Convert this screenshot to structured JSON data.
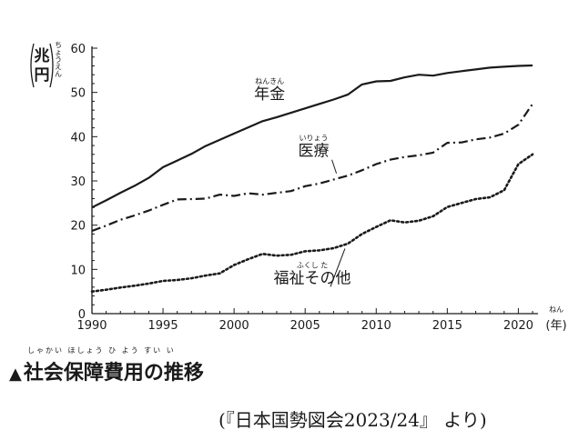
{
  "chart_data": {
    "type": "line",
    "unit_label": "兆円",
    "unit_ruby": "ちょうえん",
    "x_unit_label": "(年)",
    "x_unit_ruby": "ねん",
    "xlim": [
      1990,
      2021
    ],
    "ylim": [
      0,
      60
    ],
    "x_ticks": [
      1990,
      1995,
      2000,
      2005,
      2010,
      2015,
      2020
    ],
    "y_ticks": [
      0,
      10,
      20,
      30,
      40,
      50,
      60
    ],
    "grid": false,
    "series": [
      {
        "name": "年金",
        "ruby": "ねんきん",
        "style": "solid",
        "color": "#1a1a1a",
        "x": [
          1990,
          1991,
          1992,
          1993,
          1994,
          1995,
          1996,
          1997,
          1998,
          1999,
          2000,
          2001,
          2002,
          2003,
          2004,
          2005,
          2006,
          2007,
          2008,
          2009,
          2010,
          2011,
          2012,
          2013,
          2014,
          2015,
          2016,
          2017,
          2018,
          2019,
          2020,
          2021
        ],
        "values": [
          24,
          25.6,
          27.3,
          28.9,
          30.7,
          33.1,
          34.6,
          36.1,
          37.9,
          39.3,
          40.7,
          42.1,
          43.5,
          44.4,
          45.4,
          46.4,
          47.4,
          48.4,
          49.5,
          51.8,
          52.5,
          52.6,
          53.4,
          54.0,
          53.8,
          54.4,
          54.8,
          55.2,
          55.6,
          55.8,
          56.0,
          56.1
        ]
      },
      {
        "name": "医療",
        "ruby": "いりょう",
        "style": "dashdot",
        "color": "#1a1a1a",
        "x": [
          1990,
          1991,
          1992,
          1993,
          1994,
          1995,
          1996,
          1997,
          1998,
          1999,
          2000,
          2001,
          2002,
          2003,
          2004,
          2005,
          2006,
          2007,
          2008,
          2009,
          2010,
          2011,
          2012,
          2013,
          2014,
          2015,
          2016,
          2017,
          2018,
          2019,
          2020,
          2021
        ],
        "values": [
          18.7,
          19.9,
          21.2,
          22.2,
          23.3,
          24.6,
          25.8,
          25.9,
          26.0,
          26.9,
          26.6,
          27.2,
          26.9,
          27.3,
          27.7,
          28.8,
          29.4,
          30.3,
          31.2,
          32.4,
          33.8,
          34.8,
          35.4,
          35.8,
          36.4,
          38.6,
          38.7,
          39.4,
          39.8,
          40.7,
          42.7,
          47.4
        ]
      },
      {
        "name": "福祉その他",
        "ruby": "ふくし  た",
        "style": "dotted",
        "color": "#1a1a1a",
        "x": [
          1990,
          1991,
          1992,
          1993,
          1994,
          1995,
          1996,
          1997,
          1998,
          1999,
          2000,
          2001,
          2002,
          2003,
          2004,
          2005,
          2006,
          2007,
          2008,
          2009,
          2010,
          2011,
          2012,
          2013,
          2014,
          2015,
          2016,
          2017,
          2018,
          2019,
          2020,
          2021
        ],
        "values": [
          5.0,
          5.4,
          5.9,
          6.3,
          6.8,
          7.4,
          7.6,
          8.0,
          8.6,
          9.1,
          11.0,
          12.3,
          13.5,
          13.1,
          13.3,
          14.1,
          14.3,
          14.8,
          15.8,
          18.0,
          19.6,
          21.1,
          20.6,
          21.0,
          22.0,
          24.1,
          25.0,
          25.9,
          26.3,
          27.9,
          33.8,
          36.0
        ]
      }
    ]
  },
  "caption": {
    "marker": "▲",
    "text": "社会保障費用の推移",
    "ruby": "しゃかい ほしょう ひ よう    すい い"
  },
  "source": "(『日本国勢図会2023/24』 より)"
}
